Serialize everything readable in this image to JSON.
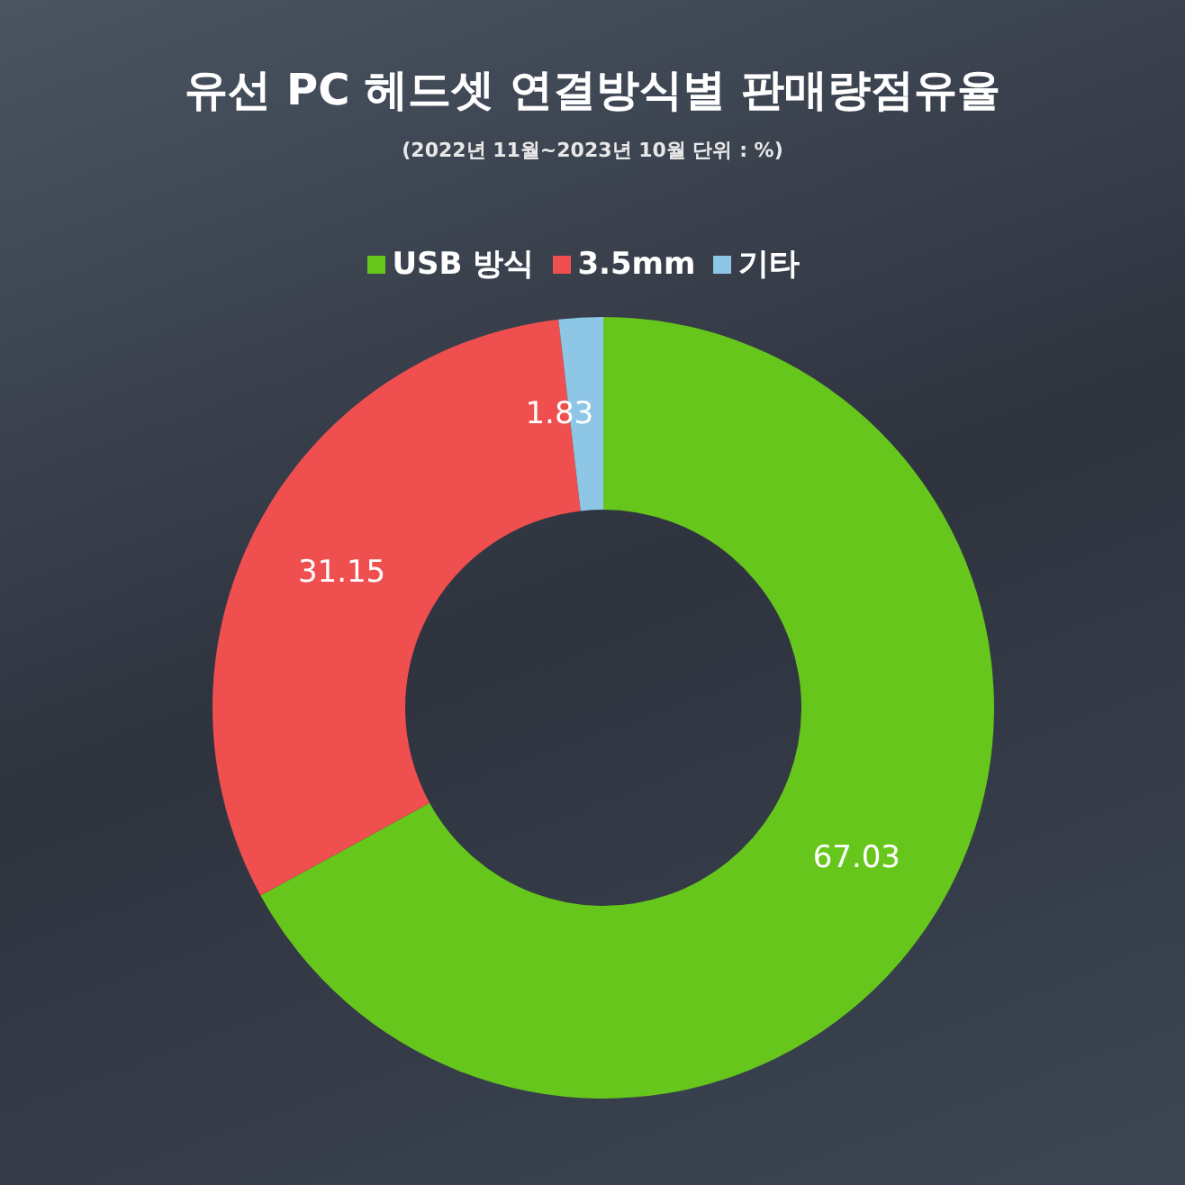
{
  "chart_data": {
    "type": "donut",
    "title": "유선 PC 헤드셋 연결방식별 판매량점유율",
    "subtitle": "(2022년 11월~2023년 10월 단위 : %)",
    "categories": [
      "USB 방식",
      "3.5mm",
      "기타"
    ],
    "values": [
      67.03,
      31.15,
      1.83
    ],
    "colors": [
      "#66c61c",
      "#ef4f4f",
      "#8ec6e6"
    ],
    "data_labels": true,
    "legend": "top"
  }
}
